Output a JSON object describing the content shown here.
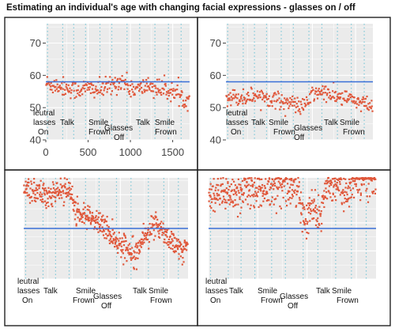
{
  "title": "Estimating an individual's age with changing facial expressions - glasses on / off",
  "colors": {
    "points": "#e0573a",
    "reference": "#3a6fd8",
    "panel_bg": "#ebebeb",
    "gridline": "#ffffff",
    "segment": "#7fc8d8"
  },
  "annotations": [
    "leutral",
    "lasses",
    "On",
    "Talk",
    "Smile",
    "Frown",
    "Glasses",
    "Off",
    "Talk",
    "Smile",
    "Frown"
  ],
  "chart_data": [
    {
      "type": "scatter",
      "panel": "top-left",
      "xlim": [
        0,
        1700
      ],
      "ylim": [
        40,
        76
      ],
      "x_ticks": [
        0,
        500,
        1000,
        1500
      ],
      "y_ticks": [
        40,
        50,
        60,
        70
      ],
      "reference_line": 58,
      "segment_boundaries": [
        20,
        200,
        330,
        470,
        640,
        780,
        960,
        1110,
        1290,
        1450,
        1600
      ],
      "trend": [
        [
          0,
          57.5
        ],
        [
          200,
          56.5
        ],
        [
          350,
          55.5
        ],
        [
          500,
          56
        ],
        [
          650,
          55.5
        ],
        [
          800,
          57
        ],
        [
          900,
          58.5
        ],
        [
          1000,
          56
        ],
        [
          1100,
          55.5
        ],
        [
          1200,
          57
        ],
        [
          1300,
          56
        ],
        [
          1400,
          55.5
        ],
        [
          1500,
          55
        ],
        [
          1600,
          53
        ],
        [
          1700,
          52.5
        ]
      ],
      "spread": 1.5
    },
    {
      "type": "scatter",
      "panel": "top-right",
      "xlim": [
        0,
        1700
      ],
      "ylim": [
        40,
        76
      ],
      "x_ticks": [],
      "y_ticks": [
        40,
        50,
        60,
        70
      ],
      "reference_line": 58,
      "segment_boundaries": [
        20,
        200,
        330,
        470,
        640,
        780,
        960,
        1110,
        1290,
        1450,
        1600
      ],
      "trend": [
        [
          0,
          53.5
        ],
        [
          200,
          53
        ],
        [
          350,
          54
        ],
        [
          500,
          53
        ],
        [
          650,
          52
        ],
        [
          800,
          51
        ],
        [
          900,
          50
        ],
        [
          1000,
          54
        ],
        [
          1100,
          55
        ],
        [
          1200,
          54
        ],
        [
          1300,
          53
        ],
        [
          1400,
          53
        ],
        [
          1500,
          52
        ],
        [
          1600,
          51
        ],
        [
          1700,
          50
        ]
      ],
      "spread": 1.3
    },
    {
      "type": "scatter",
      "panel": "bottom-left",
      "xlim": [
        0,
        1700
      ],
      "ylim": [
        40,
        76
      ],
      "x_ticks": [],
      "y_ticks": [],
      "reference_line": 58,
      "segment_boundaries": [
        20,
        200,
        330,
        470,
        640,
        780,
        960,
        1110,
        1290,
        1450,
        1600
      ],
      "trend": [
        [
          0,
          71.5
        ],
        [
          150,
          71
        ],
        [
          250,
          70
        ],
        [
          350,
          71
        ],
        [
          480,
          71.5
        ],
        [
          540,
          64
        ],
        [
          650,
          62
        ],
        [
          780,
          60
        ],
        [
          850,
          58
        ],
        [
          920,
          55
        ],
        [
          1000,
          52
        ],
        [
          1080,
          51
        ],
        [
          1150,
          50
        ],
        [
          1250,
          55
        ],
        [
          1320,
          58
        ],
        [
          1400,
          59
        ],
        [
          1480,
          56
        ],
        [
          1550,
          52
        ],
        [
          1620,
          50
        ],
        [
          1700,
          52
        ]
      ],
      "spread": 2.2
    },
    {
      "type": "scatter",
      "panel": "bottom-right",
      "xlim": [
        0,
        1700
      ],
      "ylim": [
        40,
        76
      ],
      "x_ticks": [],
      "y_ticks": [],
      "reference_line": 58,
      "segment_boundaries": [
        20,
        200,
        330,
        470,
        640,
        780,
        960,
        1110,
        1290,
        1450,
        1600
      ],
      "trend": [
        [
          0,
          69
        ],
        [
          150,
          70
        ],
        [
          300,
          71
        ],
        [
          450,
          72
        ],
        [
          600,
          72
        ],
        [
          750,
          73
        ],
        [
          850,
          74
        ],
        [
          900,
          73
        ],
        [
          950,
          63
        ],
        [
          1000,
          60
        ],
        [
          1050,
          66
        ],
        [
          1100,
          62
        ],
        [
          1150,
          65
        ],
        [
          1200,
          72
        ],
        [
          1300,
          73
        ],
        [
          1400,
          71
        ],
        [
          1500,
          75
        ],
        [
          1600,
          76
        ],
        [
          1700,
          76
        ]
      ],
      "spread": 3.5
    }
  ]
}
